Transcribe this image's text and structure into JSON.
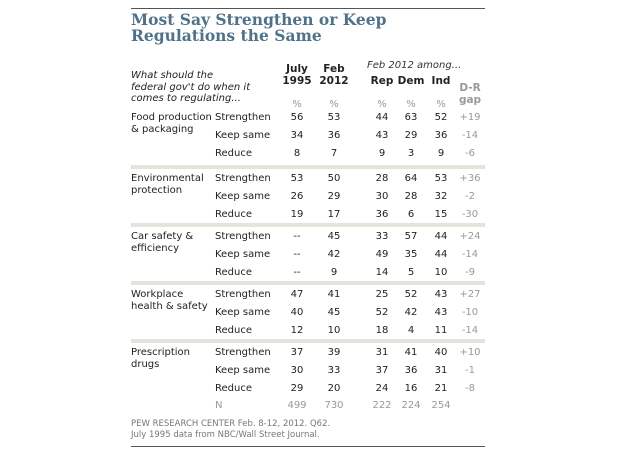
{
  "chart_data": {
    "type": "table",
    "title": "Most Say Strengthen or Keep Regulations the Same",
    "question": "What should the federal gov't do when it comes to regulating...",
    "group_header": "Feb 2012 among...",
    "columns": [
      {
        "label": "July 1995",
        "unit": "%"
      },
      {
        "label": "Feb 2012",
        "unit": "%"
      },
      {
        "label": "Rep",
        "unit": "%"
      },
      {
        "label": "Dem",
        "unit": "%"
      },
      {
        "label": "Ind",
        "unit": "%"
      },
      {
        "label": "D-R gap",
        "unit": ""
      }
    ],
    "sections": [
      {
        "label": "Food production & packaging",
        "rows": [
          {
            "label": "Strengthen",
            "values": [
              "56",
              "53",
              "44",
              "63",
              "52",
              "+19"
            ]
          },
          {
            "label": "Keep same",
            "values": [
              "34",
              "36",
              "43",
              "29",
              "36",
              "-14"
            ]
          },
          {
            "label": "Reduce",
            "values": [
              "8",
              "7",
              "9",
              "3",
              "9",
              "-6"
            ]
          }
        ]
      },
      {
        "label": "Environmental protection",
        "rows": [
          {
            "label": "Strengthen",
            "values": [
              "53",
              "50",
              "28",
              "64",
              "53",
              "+36"
            ]
          },
          {
            "label": "Keep same",
            "values": [
              "26",
              "29",
              "30",
              "28",
              "32",
              "-2"
            ]
          },
          {
            "label": "Reduce",
            "values": [
              "19",
              "17",
              "36",
              "6",
              "15",
              "-30"
            ]
          }
        ]
      },
      {
        "label": "Car safety & efficiency",
        "rows": [
          {
            "label": "Strengthen",
            "values": [
              "--",
              "45",
              "33",
              "57",
              "44",
              "+24"
            ]
          },
          {
            "label": "Keep same",
            "values": [
              "--",
              "42",
              "49",
              "35",
              "44",
              "-14"
            ]
          },
          {
            "label": "Reduce",
            "values": [
              "--",
              "9",
              "14",
              "5",
              "10",
              "-9"
            ]
          }
        ]
      },
      {
        "label": "Workplace health & safety",
        "rows": [
          {
            "label": "Strengthen",
            "values": [
              "47",
              "41",
              "25",
              "52",
              "43",
              "+27"
            ]
          },
          {
            "label": "Keep same",
            "values": [
              "40",
              "45",
              "52",
              "42",
              "43",
              "-10"
            ]
          },
          {
            "label": "Reduce",
            "values": [
              "12",
              "10",
              "18",
              "4",
              "11",
              "-14"
            ]
          }
        ]
      },
      {
        "label": "Prescription drugs",
        "rows": [
          {
            "label": "Strengthen",
            "values": [
              "37",
              "39",
              "31",
              "41",
              "40",
              "+10"
            ]
          },
          {
            "label": "Keep same",
            "values": [
              "30",
              "33",
              "37",
              "36",
              "31",
              "-1"
            ]
          },
          {
            "label": "Reduce",
            "values": [
              "29",
              "20",
              "24",
              "16",
              "21",
              "-8"
            ]
          }
        ]
      }
    ],
    "n_row": {
      "label": "N",
      "values": [
        "499",
        "730",
        "222",
        "224",
        "254"
      ]
    },
    "footnote": [
      "PEW RESEARCH CENTER Feb. 8-12, 2012. Q62.",
      "July 1995 data from NBC/Wall Street Journal."
    ]
  }
}
